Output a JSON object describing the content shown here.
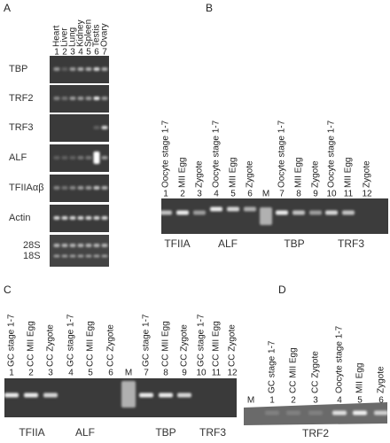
{
  "panels": [
    {
      "label": "A",
      "lanes": [
        {
          "number": "1",
          "label": "Heart"
        },
        {
          "number": "2",
          "label": "Liver"
        },
        {
          "number": "3",
          "label": "Lung"
        },
        {
          "number": "4",
          "label": "Kidney"
        },
        {
          "number": "5",
          "label": "Spleen"
        },
        {
          "number": "6",
          "label": "Testis"
        },
        {
          "number": "7",
          "label": "Ovary"
        }
      ],
      "rows": [
        "TBP",
        "TRF2",
        "TRF3",
        "ALF",
        "TFIIAαβ",
        "Actin"
      ],
      "rrna": [
        "28S",
        "18S"
      ]
    },
    {
      "label": "B",
      "lanes": [
        {
          "number": "1",
          "label": "Oocyte stage 1-7"
        },
        {
          "number": "2",
          "label": "MII Egg"
        },
        {
          "number": "3",
          "label": "Zygote"
        },
        {
          "number": "4",
          "label": "Oocyte stage 1-7"
        },
        {
          "number": "5",
          "label": "MII Egg"
        },
        {
          "number": "6",
          "label": "Zygote"
        },
        {
          "number": "M"
        },
        {
          "number": "7",
          "label": "Oocyte stage 1-7"
        },
        {
          "number": "8",
          "label": "MII Egg"
        },
        {
          "number": "9",
          "label": "Zygote"
        },
        {
          "number": "10",
          "label": "Oocyte stage 1-7"
        },
        {
          "number": "11",
          "label": "MII Egg"
        },
        {
          "number": "12",
          "label": "Zygote"
        }
      ],
      "groups": [
        "TFIIA",
        "ALF",
        "TBP",
        "TRF3"
      ]
    },
    {
      "label": "C",
      "lanes": [
        {
          "number": "1",
          "label": "GC stage 1-7"
        },
        {
          "number": "2",
          "label": "CC MII Egg"
        },
        {
          "number": "3",
          "label": "CC Zygote"
        },
        {
          "number": "4",
          "label": "GC stage 1-7"
        },
        {
          "number": "5",
          "label": "CC MII Egg"
        },
        {
          "number": "6",
          "label": "CC Zygote"
        },
        {
          "number": "M"
        },
        {
          "number": "7",
          "label": "GC stage 1-7"
        },
        {
          "number": "8",
          "label": "CC MII Egg"
        },
        {
          "number": "9",
          "label": "CC Zygote"
        },
        {
          "number": "10",
          "label": "GC stage 1-7"
        },
        {
          "number": "11",
          "label": "CC MII Egg"
        },
        {
          "number": "12",
          "label": "CC Zygote"
        }
      ],
      "groups": [
        "TFIIA",
        "ALF",
        "TBP",
        "TRF3"
      ]
    },
    {
      "label": "D",
      "lanes": [
        {
          "number": "M"
        },
        {
          "number": "1",
          "label": "GC stage 1-7"
        },
        {
          "number": "2",
          "label": "CC MII Egg"
        },
        {
          "number": "3",
          "label": "CC Zygote"
        },
        {
          "number": "4",
          "label": "Oocyte stage 1-7"
        },
        {
          "number": "5",
          "label": "MII Egg"
        },
        {
          "number": "6",
          "label": "Zygote"
        }
      ],
      "groups": [
        "TRF2"
      ]
    }
  ]
}
